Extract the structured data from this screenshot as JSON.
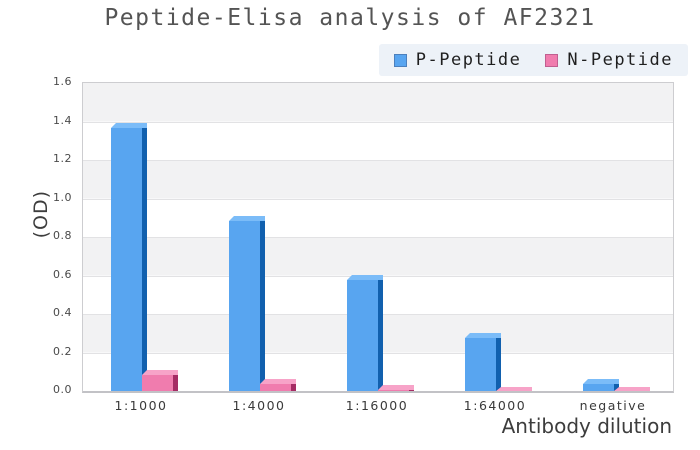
{
  "title": "Peptide-Elisa analysis of AF2321",
  "chart_data": {
    "type": "bar",
    "title": "Peptide-Elisa analysis of AF2321",
    "categories": [
      "1:1000",
      "1:4000",
      "1:16000",
      "1:64000",
      "negative"
    ],
    "series": [
      {
        "name": "P-Peptide",
        "values": [
          1.39,
          0.91,
          0.6,
          0.3,
          0.06
        ],
        "color": "#58a5f0",
        "color_top": "#7bbcf8",
        "color_side": "#1160ae",
        "swatch_border": "#4c80bd"
      },
      {
        "name": "N-Peptide",
        "values": [
          0.11,
          0.06,
          0.03,
          0.02,
          0.02
        ],
        "color": "#f07cae",
        "color_top": "#f7a3c8",
        "color_side": "#a52c64",
        "swatch_border": "#c05f90"
      }
    ],
    "xlabel": "Antibody dilution",
    "ylabel": "(OD)",
    "ylim": [
      0,
      1.6
    ],
    "yticks": [
      "0.0",
      "0.2",
      "0.4",
      "0.6",
      "0.8",
      "1.0",
      "1.2",
      "1.4",
      "1.6"
    ],
    "legend_position": "top-right",
    "grid": "horizontal-bands",
    "bar_style": "3d"
  }
}
